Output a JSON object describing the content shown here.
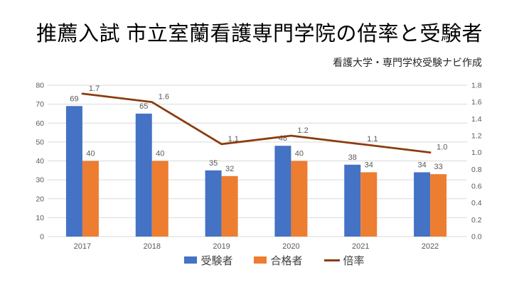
{
  "title": "推薦入試 市立室蘭看護専門学院の倍率と受験者",
  "credit": "看護大学・専門学校受験ナビ作成",
  "colors": {
    "background": "#FFFFFF",
    "bar_applicants": "#4472C4",
    "bar_admitted": "#ED7D31",
    "ratio_line": "#8B3C0E",
    "gridline": "#D9D9D9",
    "axis_text": "#595959",
    "data_label_text": "#595959",
    "legend_text": "#404040",
    "title_text": "#000000"
  },
  "chart_data": {
    "type": "combo-bar-line",
    "title": "推薦入試 市立室蘭看護専門学院の倍率と受験者",
    "categories": [
      "2017",
      "2018",
      "2019",
      "2020",
      "2021",
      "2022"
    ],
    "series": [
      {
        "name": "受験者",
        "type": "bar",
        "axis": "left",
        "color": "#4472C4",
        "values": [
          69,
          65,
          35,
          48,
          38,
          34
        ]
      },
      {
        "name": "合格者",
        "type": "bar",
        "axis": "left",
        "color": "#ED7D31",
        "values": [
          40,
          40,
          32,
          40,
          34,
          33
        ]
      },
      {
        "name": "倍率",
        "type": "line",
        "axis": "right",
        "color": "#8B3C0E",
        "values": [
          1.7,
          1.6,
          1.1,
          1.2,
          1.1,
          1.0
        ]
      }
    ],
    "left_axis": {
      "min": 0,
      "max": 80,
      "step": 10,
      "ticks": [
        "0",
        "10",
        "20",
        "30",
        "40",
        "50",
        "60",
        "70",
        "80"
      ]
    },
    "right_axis": {
      "min": 0,
      "max": 1.8,
      "step": 0.2,
      "ticks": [
        "0.0",
        "0.2",
        "0.4",
        "0.6",
        "0.8",
        "1.0",
        "1.2",
        "1.4",
        "1.6",
        "1.8"
      ]
    },
    "grid": true,
    "data_labels": true,
    "legend_position": "bottom"
  }
}
